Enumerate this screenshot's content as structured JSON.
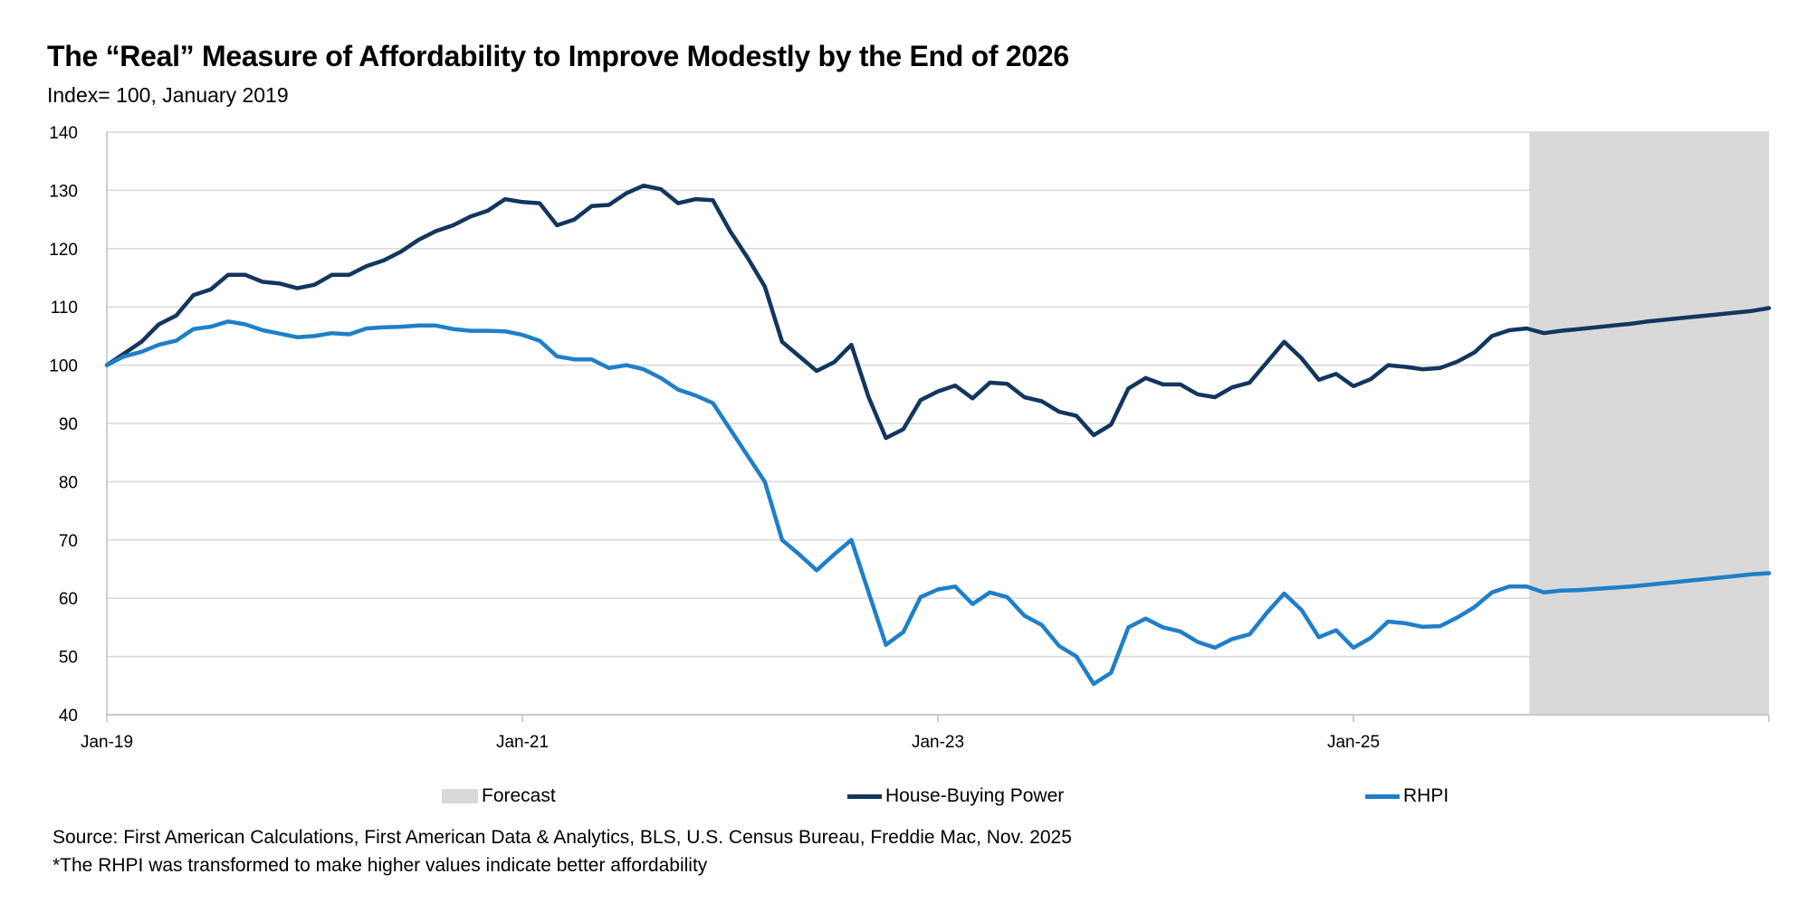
{
  "title": "The “Real” Measure of Affordability to Improve Modestly by the End of 2026",
  "subtitle": "Index= 100, January 2019",
  "source": "Source: First American Calculations, First American Data & Analytics, BLS, U.S. Census Bureau, Freddie Mac, Nov. 2025",
  "footnote": "*The RHPI was transformed to make higher values indicate better affordability",
  "chart_data": {
    "type": "line",
    "title": "The “Real” Measure of Affordability to Improve Modestly by the End of 2026",
    "xlabel": "",
    "ylabel": "",
    "ylim": [
      40,
      140
    ],
    "yticks": [
      40,
      50,
      60,
      70,
      80,
      90,
      100,
      110,
      120,
      130,
      140
    ],
    "x_start": "Jan-19",
    "x_months": 97,
    "xticks": [
      {
        "label": "Jan-19",
        "index": 0
      },
      {
        "label": "Jan-21",
        "index": 24
      },
      {
        "label": "Jan-23",
        "index": 48
      },
      {
        "label": "Jan-25",
        "index": 72
      }
    ],
    "forecast_start_index": 82,
    "forecast_label": "Forecast",
    "grid": true,
    "legend": "bottom",
    "series": [
      {
        "name": "House-Buying Power",
        "color": "#13365f",
        "values": [
          100,
          102,
          104,
          107,
          108.5,
          112,
          113,
          115.5,
          115.5,
          114.3,
          114,
          113.2,
          113.8,
          115.5,
          115.5,
          117,
          118,
          119.5,
          121.5,
          123,
          124,
          125.5,
          126.5,
          128.5,
          128,
          127.8,
          124,
          125,
          127.3,
          127.5,
          129.5,
          130.8,
          130.2,
          127.8,
          128.5,
          128.3,
          123,
          118.5,
          113.5,
          104,
          101.5,
          99,
          100.5,
          103.5,
          94.5,
          87.5,
          89,
          94,
          95.5,
          96.5,
          94.3,
          97,
          96.8,
          94.5,
          93.8,
          92,
          91.3,
          88,
          89.8,
          96,
          97.8,
          96.7,
          96.7,
          95,
          94.5,
          96.2,
          97,
          100.5,
          104,
          101.2,
          97.5,
          98.5,
          96.4,
          97.6,
          100,
          99.7,
          99.3,
          99.5,
          100.6,
          102.2,
          105,
          106,
          106.3,
          105.5,
          105.9,
          106.2,
          106.5,
          106.8,
          107.1,
          107.5,
          107.8,
          108.1,
          108.4,
          108.7,
          109.0,
          109.3,
          109.8
        ]
      },
      {
        "name": "RHPI",
        "color": "#1f7fc8",
        "values": [
          100,
          101.5,
          102.3,
          103.5,
          104.2,
          106.2,
          106.6,
          107.5,
          107,
          106,
          105.4,
          104.8,
          105,
          105.5,
          105.3,
          106.3,
          106.5,
          106.6,
          106.8,
          106.8,
          106.2,
          105.9,
          105.9,
          105.8,
          105.2,
          104.2,
          101.5,
          101,
          101,
          99.5,
          100,
          99.3,
          97.8,
          95.8,
          94.8,
          93.5,
          89,
          84.5,
          80,
          70,
          67.5,
          64.8,
          67.5,
          70,
          61,
          52,
          54.2,
          60.2,
          61.5,
          62,
          59,
          61,
          60.2,
          57,
          55.4,
          51.8,
          50,
          45.3,
          47.2,
          55,
          56.5,
          55,
          54.3,
          52.5,
          51.5,
          53,
          53.8,
          57.5,
          60.8,
          58,
          53.3,
          54.5,
          51.5,
          53.2,
          56,
          55.7,
          55.1,
          55.2,
          56.7,
          58.5,
          61,
          62,
          62,
          61,
          61.3,
          61.4,
          61.6,
          61.8,
          62,
          62.3,
          62.6,
          62.9,
          63.2,
          63.5,
          63.8,
          64.1,
          64.3
        ]
      }
    ]
  }
}
